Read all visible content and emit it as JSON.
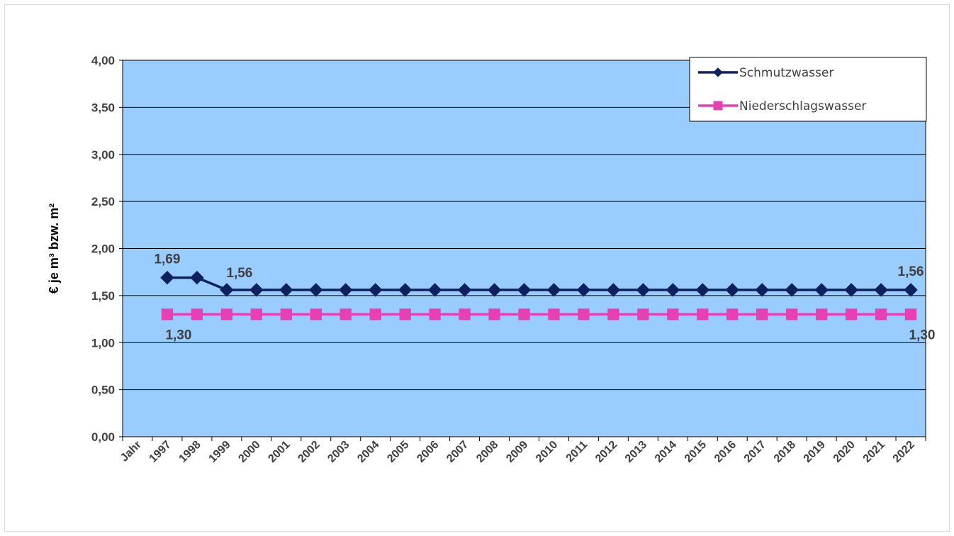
{
  "chart_data": {
    "type": "line",
    "ylabel": "€ je m³ bzw. m²",
    "ylim": [
      0,
      4
    ],
    "ytick_labels": [
      "0,00",
      "0,50",
      "1,00",
      "1,50",
      "2,00",
      "2,50",
      "3,00",
      "3,50",
      "4,00"
    ],
    "x_first_label": "Jahr",
    "categories": [
      "1997",
      "1998",
      "1999",
      "2000",
      "2001",
      "2002",
      "2003",
      "2004",
      "2005",
      "2006",
      "2007",
      "2008",
      "2009",
      "2010",
      "2011",
      "2012",
      "2013",
      "2014",
      "2015",
      "2016",
      "2017",
      "2018",
      "2019",
      "2020",
      "2021",
      "2022"
    ],
    "series": [
      {
        "name": "Schmutzwasser",
        "color": "#0d2060",
        "marker": "diamond",
        "values": [
          1.69,
          1.69,
          1.56,
          1.56,
          1.56,
          1.56,
          1.56,
          1.56,
          1.56,
          1.56,
          1.56,
          1.56,
          1.56,
          1.56,
          1.56,
          1.56,
          1.56,
          1.56,
          1.56,
          1.56,
          1.56,
          1.56,
          1.56,
          1.56,
          1.56,
          1.56
        ],
        "data_labels": [
          {
            "index": 0,
            "text": "1,69",
            "pos": "above"
          },
          {
            "index": 2,
            "text": "1,56",
            "pos": "above-right"
          },
          {
            "index": 25,
            "text": "1,56",
            "pos": "above"
          }
        ]
      },
      {
        "name": "Niederschlagswasser",
        "color": "#e83fb4",
        "marker": "square",
        "values": [
          1.3,
          1.3,
          1.3,
          1.3,
          1.3,
          1.3,
          1.3,
          1.3,
          1.3,
          1.3,
          1.3,
          1.3,
          1.3,
          1.3,
          1.3,
          1.3,
          1.3,
          1.3,
          1.3,
          1.3,
          1.3,
          1.3,
          1.3,
          1.3,
          1.3,
          1.3
        ],
        "data_labels": [
          {
            "index": 0,
            "text": "1,30",
            "pos": "below-right"
          },
          {
            "index": 25,
            "text": "1,30",
            "pos": "below-right"
          }
        ]
      }
    ],
    "plot_background": "#99ccff",
    "grid": true,
    "legend_position": "top-right"
  }
}
